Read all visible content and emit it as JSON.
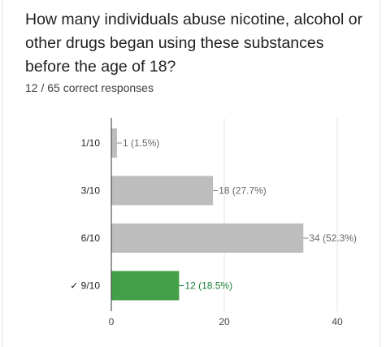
{
  "question": "How many individuals abuse nicotine, alcohol or other drugs began using these substances before the age of 18?",
  "summary": "12 / 65 correct responses",
  "colors": {
    "bar": "#bdbdbd",
    "correct_bar": "#43a047",
    "correct_text": "#188038",
    "grid": "#e6e6e6",
    "axis": "#333333"
  },
  "chart_data": {
    "type": "bar",
    "orientation": "horizontal",
    "categories": [
      "1/10",
      "3/10",
      "6/10",
      "9/10"
    ],
    "values": [
      1,
      18,
      34,
      12
    ],
    "data_labels": [
      "1 (1.5%)",
      "18 (27.7%)",
      "34 (52.3%)",
      "12 (18.5%)"
    ],
    "correct_index": 3,
    "correct_mark": "✓",
    "xlim": [
      0,
      40
    ],
    "xticks": [
      0,
      20,
      40
    ],
    "grid": true
  }
}
